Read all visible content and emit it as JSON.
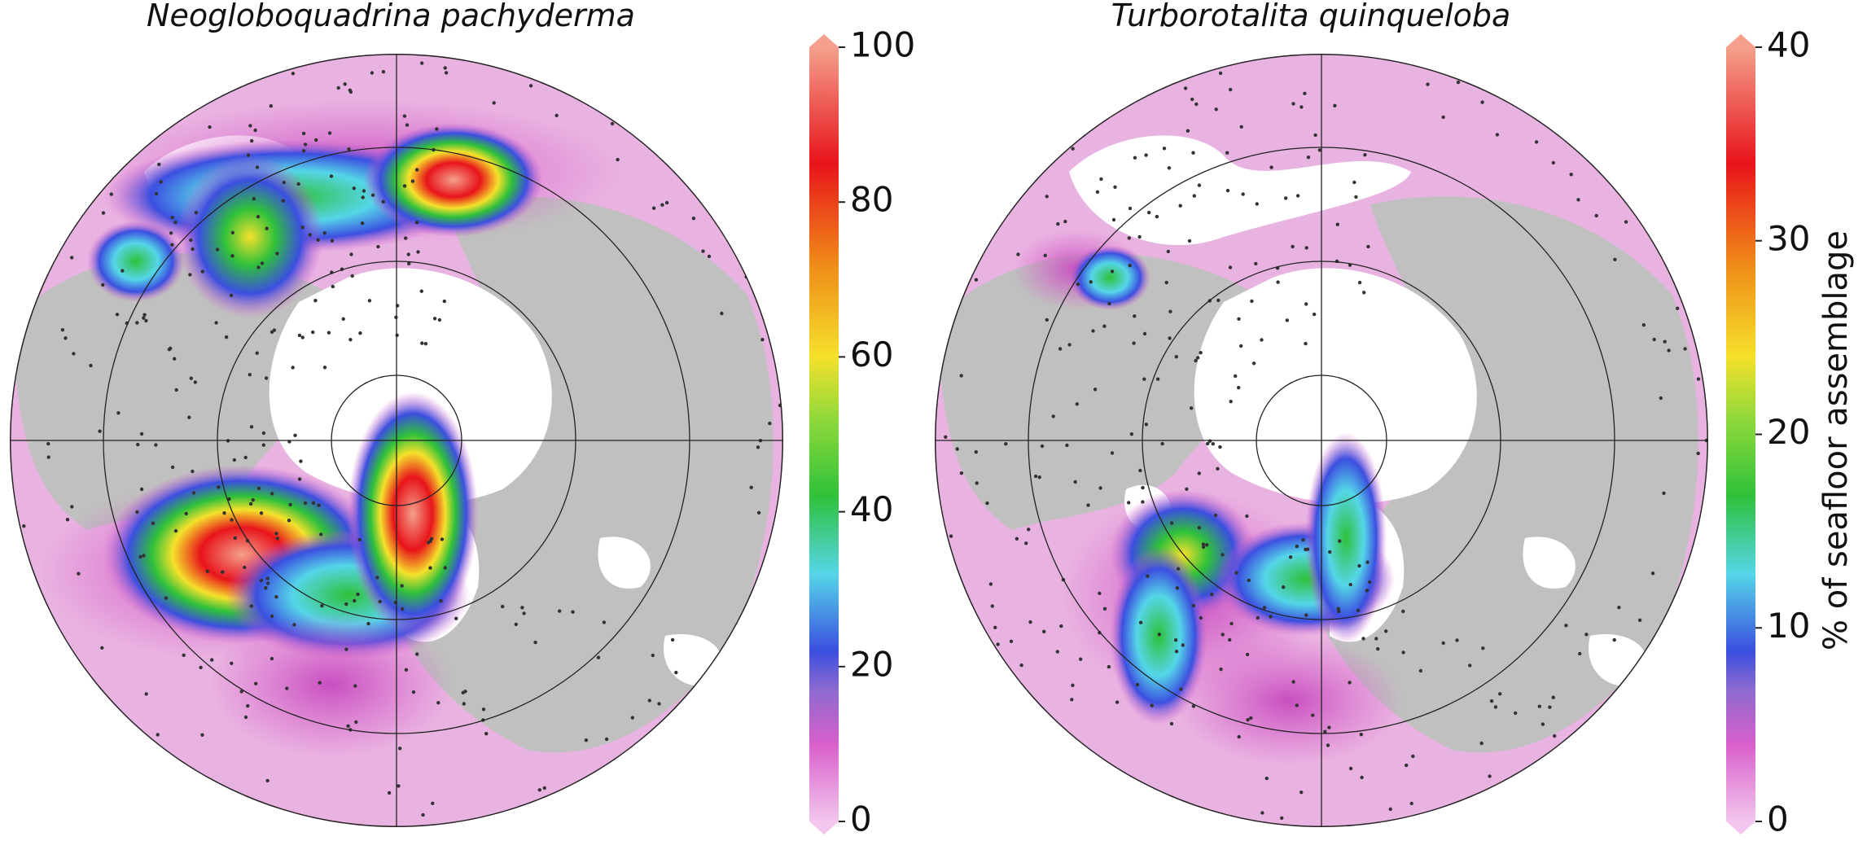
{
  "maps": [
    {
      "title": "Neogloboquadrina pachyderma",
      "colorbar": {
        "lim": [
          0,
          100
        ],
        "ticks": [
          0,
          20,
          40,
          60,
          80,
          100
        ]
      }
    },
    {
      "title": "Turborotalita quinqueloba",
      "colorbar": {
        "lim": [
          0,
          40
        ],
        "ticks": [
          0,
          10,
          20,
          30,
          40
        ]
      }
    }
  ],
  "colorbar_label": "% of seafloor assemblage"
}
